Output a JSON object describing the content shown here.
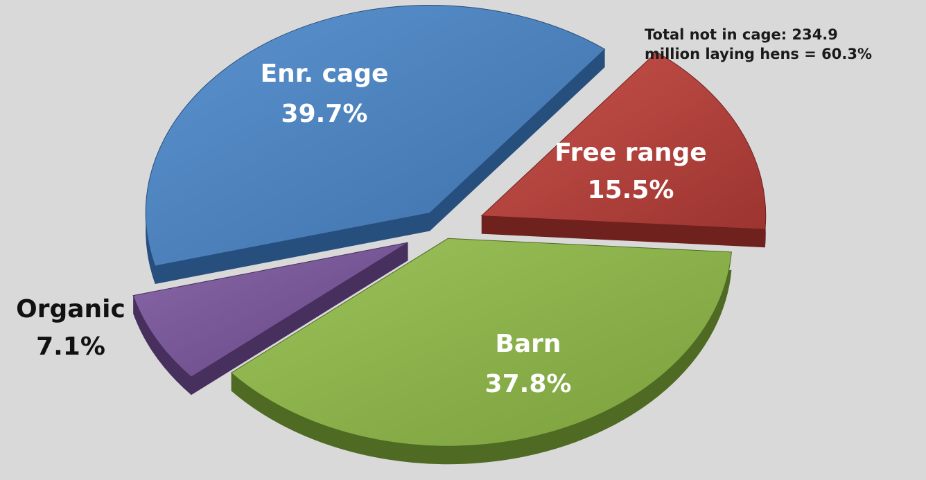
{
  "chart_data": {
    "type": "pie",
    "annotation": [
      "Total not in cage: 234.9",
      "million laying hens = 60.3%"
    ],
    "slices": [
      {
        "name": "Free range",
        "value": 15.5,
        "value_label": "15.5%",
        "color": "#b2403a"
      },
      {
        "name": "Barn",
        "value": 37.8,
        "value_label": "37.8%",
        "color": "#8bb04a"
      },
      {
        "name": "Organic",
        "value": 7.1,
        "value_label": "7.1%",
        "color": "#7a5796"
      },
      {
        "name": "Enr. cage",
        "value": 39.7,
        "value_label": "39.7%",
        "color": "#4a7fbc"
      }
    ]
  }
}
